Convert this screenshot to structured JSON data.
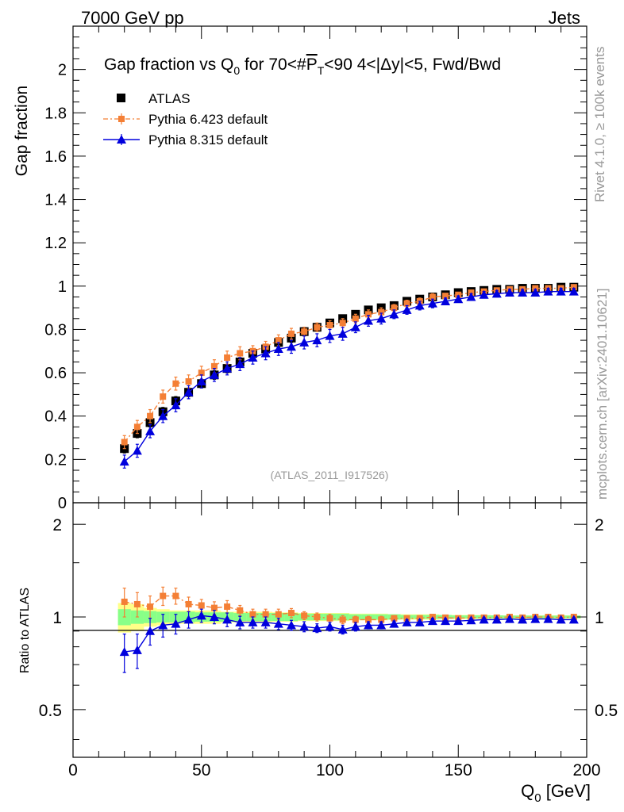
{
  "header": {
    "left": "7000 GeV pp",
    "right": "Jets"
  },
  "side_labels": {
    "rivet": "Rivet 4.1.0, ≥ 100k events",
    "mcplots": "mcplots.cern.ch [arXiv:2401.10621]"
  },
  "colors": {
    "atlas": "#000000",
    "pythia6": "#f47f35",
    "pythia8": "#0000dd",
    "band_yellow": "#ffff88",
    "band_green": "#88ff88"
  },
  "chart_data": [
    {
      "type": "scatter",
      "panel": "main",
      "title_parts": [
        "Gap fraction vs Q",
        "0",
        " for 70<#",
        "P",
        "T",
        "<90  4<|Δy|<5, Fwd/Bwd"
      ],
      "ylabel": "Gap fraction",
      "xlim": [
        0,
        200
      ],
      "ylim": [
        0,
        2.2
      ],
      "yticks": [
        0,
        0.2,
        0.4,
        0.6,
        0.8,
        1,
        1.2,
        1.4,
        1.6,
        1.8,
        2
      ],
      "ytick_labels": [
        "0",
        "0.2",
        "0.4",
        "0.6",
        "0.8",
        "1",
        "1.2",
        "1.4",
        "1.6",
        "1.8",
        "2"
      ],
      "x": [
        20,
        25,
        30,
        35,
        40,
        45,
        50,
        55,
        60,
        65,
        70,
        75,
        80,
        85,
        90,
        95,
        100,
        105,
        110,
        115,
        120,
        125,
        130,
        135,
        140,
        145,
        150,
        155,
        160,
        165,
        170,
        175,
        180,
        185,
        190,
        195
      ],
      "watermark": "(ATLAS_2011_I917526)",
      "legend_position": "top-left",
      "series": [
        {
          "name": "ATLAS",
          "marker": "square",
          "values": [
            0.25,
            0.32,
            0.37,
            0.42,
            0.47,
            0.51,
            0.55,
            0.59,
            0.62,
            0.65,
            0.69,
            0.71,
            0.74,
            0.76,
            0.79,
            0.81,
            0.83,
            0.85,
            0.87,
            0.89,
            0.9,
            0.91,
            0.93,
            0.94,
            0.95,
            0.96,
            0.97,
            0.975,
            0.98,
            0.985,
            0.985,
            0.99,
            0.99,
            0.99,
            0.995,
            0.995
          ],
          "errors": [
            0.02,
            0.02,
            0.02,
            0.02,
            0.02,
            0.02,
            0.02,
            0.02,
            0.02,
            0.02,
            0.02,
            0.02,
            0.02,
            0.02,
            0.02,
            0.015,
            0.015,
            0.015,
            0.015,
            0.015,
            0.01,
            0.01,
            0.01,
            0.01,
            0.01,
            0.01,
            0.01,
            0.01,
            0.01,
            0.01,
            0.01,
            0.01,
            0.01,
            0.01,
            0.01,
            0.01
          ]
        },
        {
          "name": "Pythia 6.423 default",
          "marker": "small-square",
          "line": "dash-dot",
          "values": [
            0.28,
            0.35,
            0.4,
            0.49,
            0.55,
            0.56,
            0.6,
            0.63,
            0.67,
            0.69,
            0.7,
            0.72,
            0.75,
            0.78,
            0.79,
            0.81,
            0.82,
            0.83,
            0.85,
            0.87,
            0.88,
            0.9,
            0.92,
            0.93,
            0.95,
            0.955,
            0.96,
            0.97,
            0.975,
            0.98,
            0.985,
            0.985,
            0.99,
            0.99,
            0.99,
            0.995
          ],
          "errors": [
            0.03,
            0.03,
            0.03,
            0.03,
            0.03,
            0.03,
            0.03,
            0.03,
            0.03,
            0.03,
            0.025,
            0.025,
            0.025,
            0.025,
            0.02,
            0.02,
            0.02,
            0.02,
            0.02,
            0.02,
            0.02,
            0.015,
            0.015,
            0.015,
            0.015,
            0.01,
            0.01,
            0.01,
            0.01,
            0.01,
            0.01,
            0.01,
            0.01,
            0.01,
            0.01,
            0.01
          ]
        },
        {
          "name": "Pythia 8.315 default",
          "marker": "triangle",
          "line": "solid",
          "values": [
            0.19,
            0.24,
            0.33,
            0.4,
            0.45,
            0.51,
            0.56,
            0.59,
            0.62,
            0.64,
            0.67,
            0.69,
            0.71,
            0.72,
            0.74,
            0.75,
            0.77,
            0.78,
            0.81,
            0.84,
            0.85,
            0.87,
            0.89,
            0.91,
            0.92,
            0.93,
            0.94,
            0.95,
            0.96,
            0.965,
            0.97,
            0.97,
            0.97,
            0.975,
            0.975,
            0.975
          ],
          "errors": [
            0.03,
            0.03,
            0.03,
            0.03,
            0.03,
            0.03,
            0.03,
            0.03,
            0.03,
            0.03,
            0.03,
            0.03,
            0.03,
            0.03,
            0.03,
            0.03,
            0.03,
            0.03,
            0.025,
            0.025,
            0.025,
            0.02,
            0.02,
            0.02,
            0.02,
            0.015,
            0.015,
            0.015,
            0.015,
            0.015,
            0.015,
            0.015,
            0.015,
            0.015,
            0.015,
            0.015
          ]
        }
      ]
    },
    {
      "type": "scatter",
      "panel": "ratio",
      "ylabel": "Ratio to ATLAS",
      "xlabel": "Q",
      "xlabel_sub": "0",
      "xlabel_unit": " [GeV]",
      "xlim": [
        0,
        200
      ],
      "ylim": [
        0.35,
        2.35
      ],
      "yscale": "log",
      "yticks": [
        0.5,
        1,
        2
      ],
      "ytick_labels": [
        "0.5",
        "1",
        "2"
      ],
      "xticks": [
        0,
        50,
        100,
        150,
        200
      ],
      "xtick_labels": [
        "0",
        "50",
        "100",
        "150",
        "200"
      ],
      "x": [
        20,
        25,
        30,
        35,
        40,
        45,
        50,
        55,
        60,
        65,
        70,
        75,
        80,
        85,
        90,
        95,
        100,
        105,
        110,
        115,
        120,
        125,
        130,
        135,
        140,
        145,
        150,
        155,
        160,
        165,
        170,
        175,
        180,
        185,
        190,
        195
      ],
      "band_yellow_halfwidth": [
        0.11,
        0.1,
        0.07,
        0.06,
        0.05,
        0.05,
        0.05,
        0.05,
        0.04,
        0.04,
        0.04,
        0.04,
        0.035,
        0.035,
        0.03,
        0.03,
        0.03,
        0.03,
        0.025,
        0.025,
        0.025,
        0.02,
        0.02,
        0.02,
        0.02,
        0.015,
        0.015,
        0.015,
        0.015,
        0.012,
        0.012,
        0.012,
        0.012,
        0.012,
        0.012,
        0.012
      ],
      "band_green_halfwidth": [
        0.06,
        0.05,
        0.045,
        0.04,
        0.04,
        0.04,
        0.035,
        0.035,
        0.035,
        0.03,
        0.03,
        0.03,
        0.03,
        0.03,
        0.025,
        0.025,
        0.025,
        0.025,
        0.02,
        0.02,
        0.02,
        0.02,
        0.015,
        0.015,
        0.015,
        0.015,
        0.012,
        0.012,
        0.012,
        0.012,
        0.01,
        0.01,
        0.01,
        0.01,
        0.01,
        0.01
      ],
      "series": [
        {
          "name": "Pythia 6.423 default",
          "marker": "small-square",
          "line": "dash-dot",
          "values": [
            1.12,
            1.1,
            1.08,
            1.17,
            1.17,
            1.1,
            1.09,
            1.07,
            1.08,
            1.05,
            1.02,
            1.02,
            1.02,
            1.03,
            1.01,
            1.0,
            0.99,
            0.98,
            0.98,
            0.98,
            0.98,
            0.99,
            0.99,
            0.99,
            1.0,
            0.995,
            0.99,
            0.995,
            0.995,
            0.995,
            1.0,
            0.995,
            1.0,
            1.0,
            0.995,
            1.0
          ],
          "errors": [
            0.12,
            0.1,
            0.09,
            0.08,
            0.07,
            0.06,
            0.05,
            0.05,
            0.05,
            0.04,
            0.04,
            0.04,
            0.04,
            0.035,
            0.03,
            0.03,
            0.03,
            0.03,
            0.025,
            0.025,
            0.025,
            0.02,
            0.02,
            0.02,
            0.02,
            0.015,
            0.015,
            0.015,
            0.015,
            0.015,
            0.015,
            0.015,
            0.015,
            0.015,
            0.015,
            0.015
          ]
        },
        {
          "name": "Pythia 8.315 default",
          "marker": "triangle",
          "line": "solid",
          "values": [
            0.77,
            0.78,
            0.9,
            0.94,
            0.95,
            0.98,
            1.01,
            1.0,
            0.98,
            0.96,
            0.96,
            0.96,
            0.95,
            0.94,
            0.93,
            0.92,
            0.93,
            0.91,
            0.93,
            0.94,
            0.94,
            0.95,
            0.96,
            0.96,
            0.97,
            0.97,
            0.97,
            0.975,
            0.98,
            0.98,
            0.985,
            0.98,
            0.985,
            0.985,
            0.98,
            0.98
          ],
          "errors": [
            0.11,
            0.1,
            0.09,
            0.08,
            0.07,
            0.06,
            0.05,
            0.05,
            0.05,
            0.045,
            0.04,
            0.04,
            0.04,
            0.035,
            0.035,
            0.03,
            0.03,
            0.03,
            0.03,
            0.025,
            0.025,
            0.02,
            0.02,
            0.02,
            0.02,
            0.018,
            0.015,
            0.015,
            0.015,
            0.015,
            0.015,
            0.015,
            0.015,
            0.015,
            0.015,
            0.015
          ]
        }
      ]
    }
  ]
}
